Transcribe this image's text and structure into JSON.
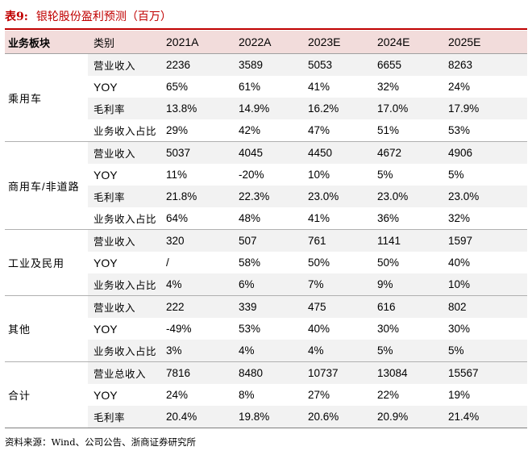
{
  "title": {
    "number": "表9:",
    "text": "银轮股份盈利预测（百万）"
  },
  "header": {
    "segment": "业务板块",
    "category": "类别",
    "years": [
      "2021A",
      "2022A",
      "2023E",
      "2024E",
      "2025E"
    ]
  },
  "groups": [
    {
      "segment": "乘用车",
      "rows": [
        {
          "category": "营业收入",
          "values": [
            "2236",
            "3589",
            "5053",
            "6655",
            "8263"
          ]
        },
        {
          "category": "YOY",
          "values": [
            "65%",
            "61%",
            "41%",
            "32%",
            "24%"
          ]
        },
        {
          "category": "毛利率",
          "values": [
            "13.8%",
            "14.9%",
            "16.2%",
            "17.0%",
            "17.9%"
          ]
        },
        {
          "category": "业务收入占比",
          "values": [
            "29%",
            "42%",
            "47%",
            "51%",
            "53%"
          ]
        }
      ]
    },
    {
      "segment": "商用车/非道路",
      "rows": [
        {
          "category": "营业收入",
          "values": [
            "5037",
            "4045",
            "4450",
            "4672",
            "4906"
          ]
        },
        {
          "category": "YOY",
          "values": [
            "11%",
            "-20%",
            "10%",
            "5%",
            "5%"
          ]
        },
        {
          "category": "毛利率",
          "values": [
            "21.8%",
            "22.3%",
            "23.0%",
            "23.0%",
            "23.0%"
          ]
        },
        {
          "category": "业务收入占比",
          "values": [
            "64%",
            "48%",
            "41%",
            "36%",
            "32%"
          ]
        }
      ]
    },
    {
      "segment": "工业及民用",
      "rows": [
        {
          "category": "营业收入",
          "values": [
            "320",
            "507",
            "761",
            "1141",
            "1597"
          ]
        },
        {
          "category": "YOY",
          "values": [
            "/",
            "58%",
            "50%",
            "50%",
            "40%"
          ]
        },
        {
          "category": "业务收入占比",
          "values": [
            "4%",
            "6%",
            "7%",
            "9%",
            "10%"
          ]
        }
      ]
    },
    {
      "segment": "其他",
      "rows": [
        {
          "category": "营业收入",
          "values": [
            "222",
            "339",
            "475",
            "616",
            "802"
          ]
        },
        {
          "category": "YOY",
          "values": [
            "-49%",
            "53%",
            "40%",
            "30%",
            "30%"
          ]
        },
        {
          "category": "业务收入占比",
          "values": [
            "3%",
            "4%",
            "4%",
            "5%",
            "5%"
          ]
        }
      ]
    },
    {
      "segment": "合计",
      "rows": [
        {
          "category": "营业总收入",
          "values": [
            "7816",
            "8480",
            "10737",
            "13084",
            "15567"
          ]
        },
        {
          "category": "YOY",
          "values": [
            "24%",
            "8%",
            "27%",
            "22%",
            "19%"
          ]
        },
        {
          "category": "毛利率",
          "values": [
            "20.4%",
            "19.8%",
            "20.6%",
            "20.9%",
            "21.4%"
          ]
        }
      ]
    }
  ],
  "source": "资料来源：Wind、公司公告、浙商证券研究所",
  "colors": {
    "title": "#c00000",
    "header_bg": "#f2dcdb",
    "row_shade": "#f2f2f2"
  }
}
